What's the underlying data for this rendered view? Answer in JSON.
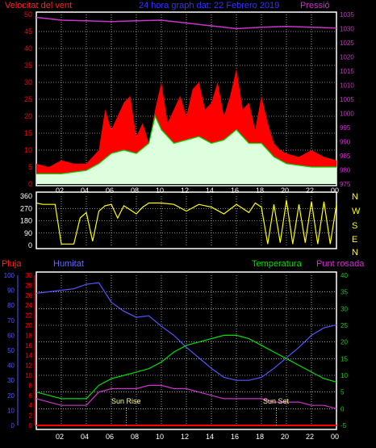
{
  "colors": {
    "red": "#ff0000",
    "green": "#00dd00",
    "white_fill": "#ddffdd",
    "magenta": "#cc33cc",
    "blue": "#5555ff",
    "yellow": "#ffff00",
    "grid": "#ffffff",
    "axis_text": "#ffffff",
    "zero_line": "#ff0000"
  },
  "top": {
    "title_left": "Velocitat del vent",
    "title_center": "24 hora graph dat:  22 Febrero 2019",
    "title_right": "Pressió"
  },
  "mid": {
    "compass": [
      "N",
      "W",
      "S",
      "E",
      "N"
    ]
  },
  "bottom": {
    "label_pluja": "Pluja",
    "label_humitat": "Humitat",
    "label_temperatura": "Temperatura",
    "label_punt": "Punt rosada",
    "sun_rise": "Sun Rise",
    "sun_set": "Sun Set"
  },
  "chart_data": [
    {
      "type": "area",
      "series": [
        {
          "name": "Velocitat del vent",
          "x": [
            0,
            1,
            2,
            3,
            4,
            5,
            5.5,
            6,
            6.5,
            7,
            7.5,
            8,
            8.5,
            9,
            9.5,
            10,
            10.5,
            11,
            11.5,
            12,
            12.5,
            13,
            13.5,
            14,
            14.5,
            15,
            15.5,
            16,
            16.5,
            17,
            17.5,
            18,
            18.5,
            19,
            19.5,
            20,
            21,
            22,
            23,
            24
          ],
          "values": [
            6,
            5,
            7,
            6,
            6,
            10,
            22,
            16,
            20,
            24,
            26,
            14,
            18,
            12,
            22,
            30,
            18,
            22,
            26,
            20,
            28,
            30,
            22,
            24,
            30,
            20,
            26,
            34,
            22,
            24,
            16,
            26,
            18,
            12,
            10,
            9,
            8,
            10,
            8,
            7
          ]
        },
        {
          "name": "gust_mean",
          "x": [
            0,
            2,
            4,
            5,
            6,
            7,
            8,
            9,
            9.5,
            10,
            11,
            12,
            13,
            14,
            15,
            16,
            17,
            18,
            19,
            20,
            22,
            24
          ],
          "values": [
            3,
            3,
            4,
            6,
            9,
            10,
            9,
            12,
            20,
            16,
            12,
            13,
            14,
            12,
            13,
            16,
            12,
            12,
            8,
            6,
            5,
            5
          ]
        },
        {
          "name": "Pressió",
          "x": [
            0,
            2,
            4,
            6,
            8,
            10,
            12,
            14,
            16,
            18,
            20,
            22,
            24
          ],
          "values": [
            1034,
            1033,
            1032.8,
            1032.5,
            1032.8,
            1033,
            1032,
            1031,
            1030,
            1030.5,
            1030.8,
            1030.5,
            1030.2
          ]
        }
      ],
      "ylim_left": [
        0,
        50
      ],
      "ylim_right": [
        975,
        1035
      ],
      "yticks_left": [
        "0",
        "5",
        "10",
        "15",
        "20",
        "25",
        "30",
        "35",
        "40",
        "45",
        "50"
      ],
      "yticks_right": [
        "975",
        "980",
        "985",
        "990",
        "995",
        "1000",
        "1005",
        "1010",
        "1015",
        "1020",
        "1025",
        "1030",
        "1035"
      ],
      "xticks": [
        "02",
        "04",
        "06",
        "08",
        "10",
        "12",
        "14",
        "16",
        "18",
        "20",
        "22",
        "00"
      ]
    },
    {
      "type": "line",
      "series": [
        {
          "name": "direccio",
          "x": [
            0,
            0.5,
            1,
            1.5,
            2,
            3,
            3.5,
            4,
            4.5,
            5,
            5.5,
            6,
            6.5,
            7,
            7.5,
            8,
            8.5,
            9,
            10,
            11,
            12,
            13,
            14,
            15,
            16,
            17,
            17.5,
            18,
            18.5,
            19,
            19.5,
            20,
            20.5,
            21,
            21.5,
            22,
            22.5,
            23,
            23.5,
            24
          ],
          "values": [
            310,
            300,
            300,
            300,
            10,
            10,
            200,
            240,
            30,
            250,
            290,
            300,
            200,
            290,
            260,
            230,
            280,
            310,
            310,
            300,
            250,
            300,
            280,
            230,
            300,
            240,
            310,
            280,
            10,
            300,
            20,
            330,
            10,
            300,
            20,
            320,
            10,
            320,
            10,
            300
          ]
        }
      ],
      "ylim": [
        0,
        360
      ],
      "yticks": [
        "0",
        "90",
        "180",
        "270",
        "360"
      ]
    },
    {
      "type": "line",
      "series": [
        {
          "name": "Humitat",
          "x": [
            0,
            1,
            2,
            3,
            4,
            5,
            6,
            7,
            8,
            9,
            10,
            11,
            12,
            13,
            14,
            15,
            16,
            17,
            18,
            19,
            20,
            21,
            22,
            23,
            24
          ],
          "values": [
            88,
            89,
            90,
            91,
            94,
            95,
            82,
            76,
            72,
            73,
            66,
            60,
            52,
            45,
            38,
            32,
            30,
            30,
            32,
            38,
            45,
            52,
            60,
            65,
            67
          ]
        },
        {
          "name": "Temperatura",
          "x": [
            0,
            1,
            2,
            3,
            4,
            5,
            6,
            7,
            8,
            9,
            10,
            11,
            12,
            13,
            14,
            15,
            16,
            17,
            18,
            19,
            20,
            21,
            22,
            23,
            24
          ],
          "values": [
            5,
            4,
            3,
            3,
            3,
            7,
            9,
            10,
            11,
            12,
            14,
            17,
            19,
            20,
            21,
            22,
            22,
            21,
            19,
            17,
            15,
            13,
            11,
            9,
            8
          ]
        },
        {
          "name": "Punt rosada",
          "x": [
            0,
            1,
            2,
            3,
            4,
            5,
            6,
            7,
            8,
            9,
            10,
            11,
            12,
            13,
            14,
            15,
            16,
            17,
            18,
            19,
            20,
            21,
            22,
            23,
            24
          ],
          "values": [
            3,
            2,
            1,
            1,
            1,
            5,
            6,
            6,
            6,
            7,
            7,
            6,
            6,
            5,
            4,
            3,
            3,
            3,
            3,
            2,
            2,
            2,
            1,
            1,
            0
          ]
        },
        {
          "name": "Pluja",
          "x": [
            0,
            24
          ],
          "values": [
            0,
            0
          ]
        }
      ],
      "ylim_humitat": [
        0,
        100
      ],
      "ylim_pluja": [
        0,
        30
      ],
      "ylim_temp": [
        -5,
        40
      ],
      "yticks_humitat": [
        "0",
        "10",
        "20",
        "30",
        "40",
        "50",
        "60",
        "70",
        "80",
        "90",
        "100"
      ],
      "yticks_pluja": [
        "0",
        "2",
        "4",
        "6",
        "8",
        "10",
        "12",
        "14",
        "16",
        "18",
        "20",
        "22",
        "24",
        "26",
        "28",
        "30"
      ],
      "yticks_temp": [
        "-5",
        "0",
        "5",
        "10",
        "15",
        "20",
        "25",
        "30",
        "35",
        "40"
      ],
      "xticks": [
        "02",
        "04",
        "06",
        "08",
        "10",
        "12",
        "14",
        "16",
        "18",
        "20",
        "22",
        "00"
      ],
      "annotations": [
        {
          "text": "Sun Rise",
          "x": 7.2
        },
        {
          "text": "Sun Set",
          "x": 19.2
        }
      ]
    }
  ]
}
